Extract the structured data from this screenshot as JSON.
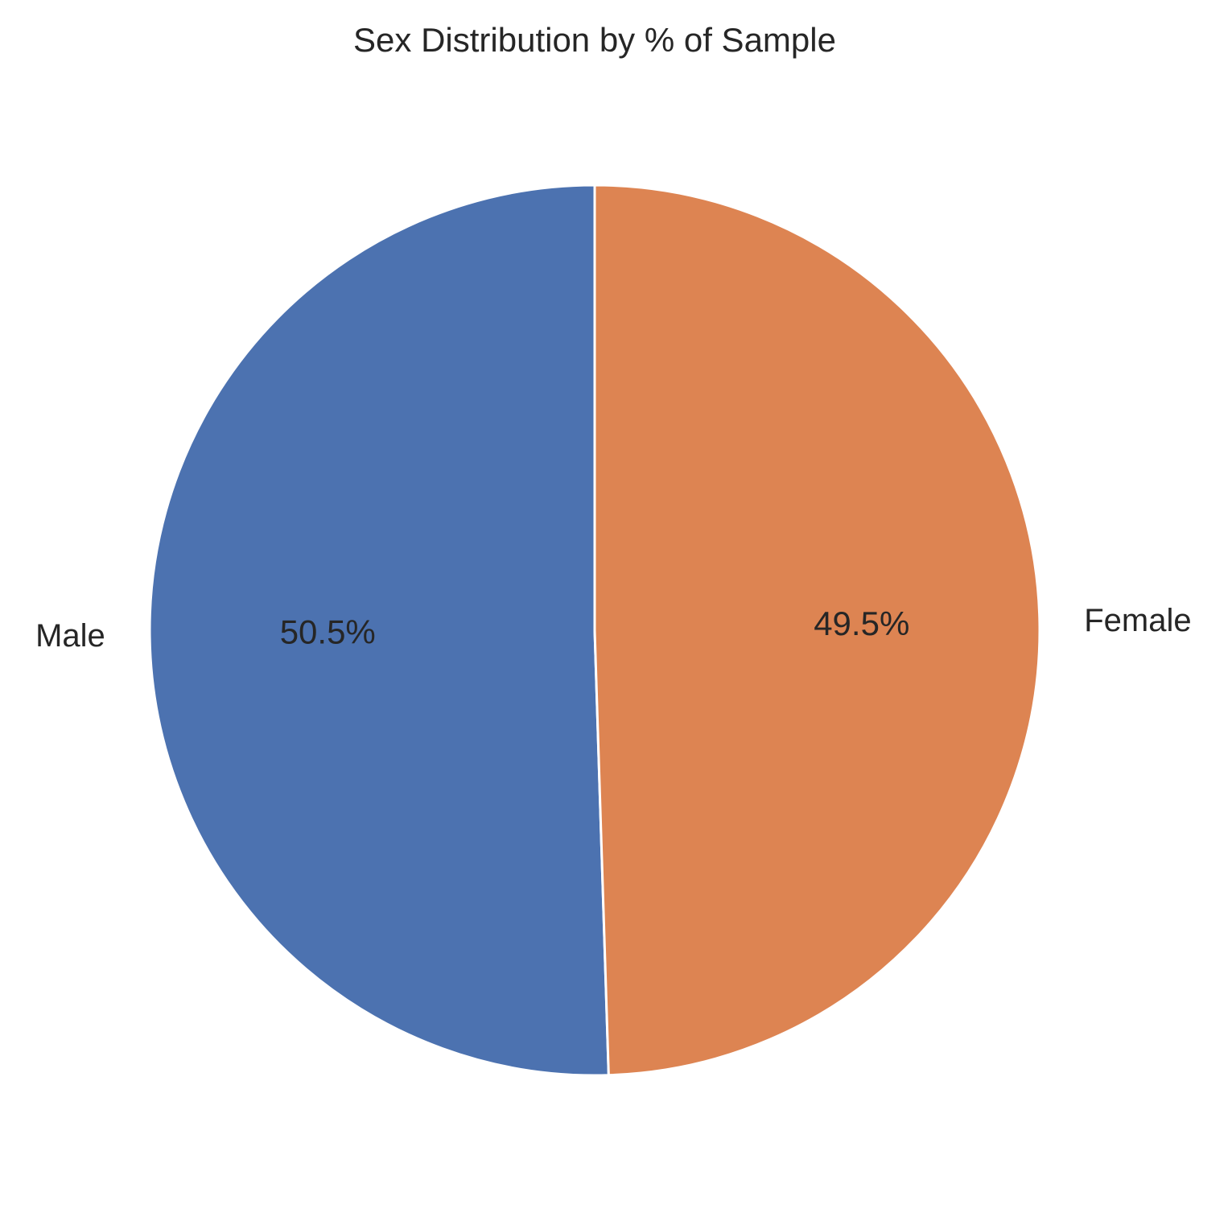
{
  "chart_data": {
    "type": "pie",
    "title": "Sex Distribution by % of Sample",
    "categories": [
      "Male",
      "Female"
    ],
    "values": [
      50.5,
      49.5
    ],
    "value_labels": [
      "50.5%",
      "49.5%"
    ],
    "colors": [
      "#4c72b0",
      "#dd8452"
    ],
    "start_angle_deg": 90,
    "direction": "counterclockwise",
    "legend": "none"
  }
}
